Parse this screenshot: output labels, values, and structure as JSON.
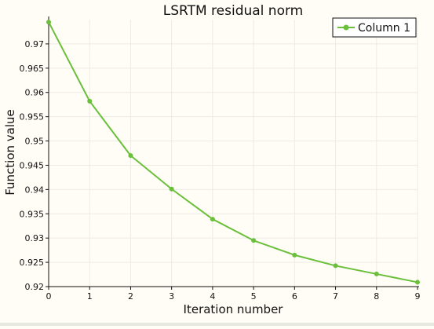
{
  "chart_data": {
    "type": "line",
    "title": "LSRTM residual norm",
    "xlabel": "Iteration number",
    "ylabel": "Function value",
    "xlim": [
      0,
      9
    ],
    "ylim": [
      0.92,
      0.975
    ],
    "x_ticks": [
      0,
      1,
      2,
      3,
      4,
      5,
      6,
      7,
      8,
      9
    ],
    "y_ticks": [
      0.92,
      0.925,
      0.93,
      0.935,
      0.94,
      0.945,
      0.95,
      0.955,
      0.96,
      0.965,
      0.97
    ],
    "x_tick_labels": [
      "0",
      "1",
      "2",
      "3",
      "4",
      "5",
      "6",
      "7",
      "8",
      "9"
    ],
    "y_tick_labels": [
      "0.92",
      "0.925",
      "0.93",
      "0.935",
      "0.94",
      "0.945",
      "0.95",
      "0.955",
      "0.96",
      "0.965",
      "0.97"
    ],
    "grid": true,
    "legend_position": "top-right",
    "series": [
      {
        "name": "Column 1",
        "color": "#6abf3b",
        "x": [
          0,
          1,
          2,
          3,
          4,
          5,
          6,
          7,
          8,
          9
        ],
        "y": [
          0.9745,
          0.9582,
          0.947,
          0.9401,
          0.9339,
          0.9295,
          0.9265,
          0.9243,
          0.9226,
          0.9209
        ]
      }
    ]
  }
}
